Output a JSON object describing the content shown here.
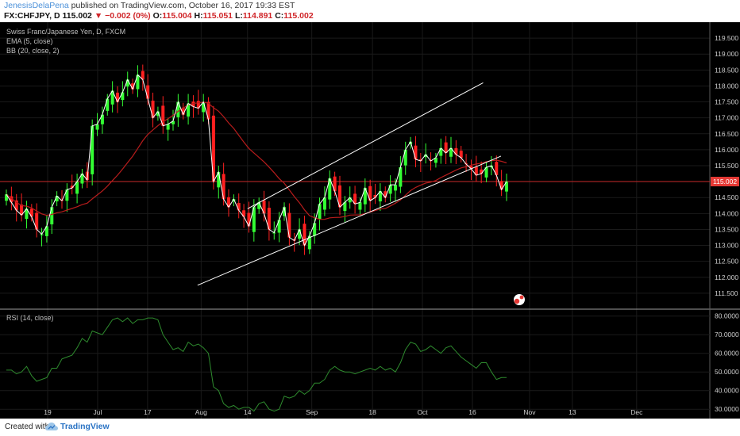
{
  "header": {
    "author": "JenesisDelaPena",
    "published": "published on TradingView.com, October 16, 2017 19:33 EST",
    "symbol": "FX:CHFJPY, D",
    "last": "115.002",
    "change": "▼ −0.002 (0%)",
    "open_label": "O:",
    "open": "115.004",
    "high_label": "H:",
    "high": "115.051",
    "low_label": "L:",
    "low": "114.891",
    "close_label": "C:",
    "close": "115.002"
  },
  "legend": {
    "title": "Swiss Franc/Japanese Yen, D, FXCM",
    "ema": "EMA (5, close)",
    "bb": "BB (20, close, 2)",
    "rsi": "RSI (14, close)"
  },
  "footer": {
    "created": "Created with",
    "brand": "TradingView"
  },
  "colors": {
    "background": "#000000",
    "up_candle": "#33ff33",
    "down_candle": "#ff2020",
    "ema": "#ffffff",
    "bb_basis": "#b71c1c",
    "channel": "#ffffff",
    "rsi": "#2e8b2e",
    "price_line": "#c62828",
    "price_label": "#e53935"
  },
  "chart_data": [
    {
      "type": "candlestick",
      "title": "Swiss Franc/Japanese Yen, D, FXCM",
      "last_price": "115.002",
      "price_scale": {
        "min": 111.5,
        "max": 119.5,
        "ticks": [
          "111.500",
          "112.000",
          "112.500",
          "113.000",
          "113.500",
          "114.000",
          "114.500",
          "115.000",
          "115.500",
          "116.000",
          "116.500",
          "117.000",
          "117.500",
          "118.000",
          "118.500",
          "119.000",
          "119.500"
        ]
      },
      "x_ticks": [
        {
          "label": "19",
          "date": "2017-06-19"
        },
        {
          "label": "Jul",
          "date": "2017-07-03"
        },
        {
          "label": "17",
          "date": "2017-07-17"
        },
        {
          "label": "Aug",
          "date": "2017-08-01"
        },
        {
          "label": "14",
          "date": "2017-08-14"
        },
        {
          "label": "Sep",
          "date": "2017-09-01"
        },
        {
          "label": "18",
          "date": "2017-09-18"
        },
        {
          "label": "Oct",
          "date": "2017-10-02"
        },
        {
          "label": "16",
          "date": "2017-10-16"
        },
        {
          "label": "Nov",
          "date": "2017-11-01"
        },
        {
          "label": "13",
          "date": "2017-11-13"
        },
        {
          "label": "Dec",
          "date": "2017-12-01"
        }
      ],
      "series": [
        {
          "name": "EMA (5, close)",
          "closes": [
            114.6,
            114.35,
            114.1,
            113.95,
            114.15,
            113.9,
            113.5,
            113.35,
            113.6,
            114.2,
            114.55,
            114.4,
            114.75,
            114.8,
            115.0,
            115.25,
            115.05,
            116.75,
            116.8,
            117.1,
            117.6,
            117.85,
            117.5,
            117.8,
            118.2,
            117.9,
            118.35,
            118.2,
            117.6,
            117.0,
            117.2,
            116.75,
            116.8,
            116.9,
            117.5,
            117.1,
            117.45,
            117.35,
            117.3,
            117.5,
            116.95,
            115.0,
            115.3,
            114.45,
            114.2,
            114.45,
            114.1,
            113.9,
            113.6,
            114.2,
            114.35,
            114.0,
            113.5,
            113.4,
            113.8,
            114.2,
            113.25,
            113.15,
            113.5,
            113.0,
            113.3,
            113.7,
            114.3,
            114.5,
            115.1,
            114.7,
            114.2,
            114.35,
            114.5,
            114.3,
            114.35,
            114.8,
            114.4,
            114.5,
            114.7,
            114.5,
            114.9,
            114.9,
            115.45,
            116.0,
            116.25,
            115.7,
            115.65,
            115.85,
            115.65,
            115.75,
            116.05,
            115.9,
            116.05,
            115.85,
            115.75,
            115.55,
            115.4,
            115.2,
            115.25,
            115.45,
            115.5,
            115.2,
            114.75,
            115.0
          ]
        },
        {
          "name": "BB (20, close, 2)",
          "note": "basis line only is drawn"
        }
      ],
      "channel": {
        "lower": {
          "from": {
            "date": "2017-07-31",
            "price": 111.75
          },
          "to": {
            "date": "2017-10-24",
            "price": 115.8
          }
        },
        "upper": {
          "from": {
            "date": "2017-08-14",
            "price": 114.15
          },
          "to": {
            "date": "2017-10-19",
            "price": 118.1
          }
        }
      }
    },
    {
      "type": "line",
      "title": "RSI (14, close)",
      "ylim": [
        25,
        82
      ],
      "ticks": [
        "30.0000",
        "40.0000",
        "50.0000",
        "60.0000",
        "70.0000",
        "80.0000"
      ],
      "values": [
        51,
        51,
        49,
        50,
        53,
        48,
        45,
        46,
        47,
        52,
        52,
        57,
        58,
        59,
        63,
        68,
        66,
        72,
        71,
        70,
        74,
        78,
        79,
        77,
        79,
        76,
        78,
        78,
        79,
        79,
        78,
        70,
        66,
        62,
        63,
        61,
        66,
        64,
        65,
        63,
        60,
        42,
        40,
        33,
        31,
        32,
        30,
        31,
        31,
        29,
        33,
        34,
        30,
        29,
        30,
        37,
        36,
        37,
        40,
        38,
        40,
        44,
        44,
        46,
        51,
        53,
        51,
        50,
        50,
        49,
        50,
        51,
        52,
        51,
        53,
        51,
        52,
        50,
        55,
        62,
        66,
        65,
        61,
        62,
        64,
        62,
        60,
        63,
        64,
        61,
        58,
        56,
        54,
        52,
        55,
        55,
        50,
        46,
        47,
        47
      ]
    }
  ]
}
